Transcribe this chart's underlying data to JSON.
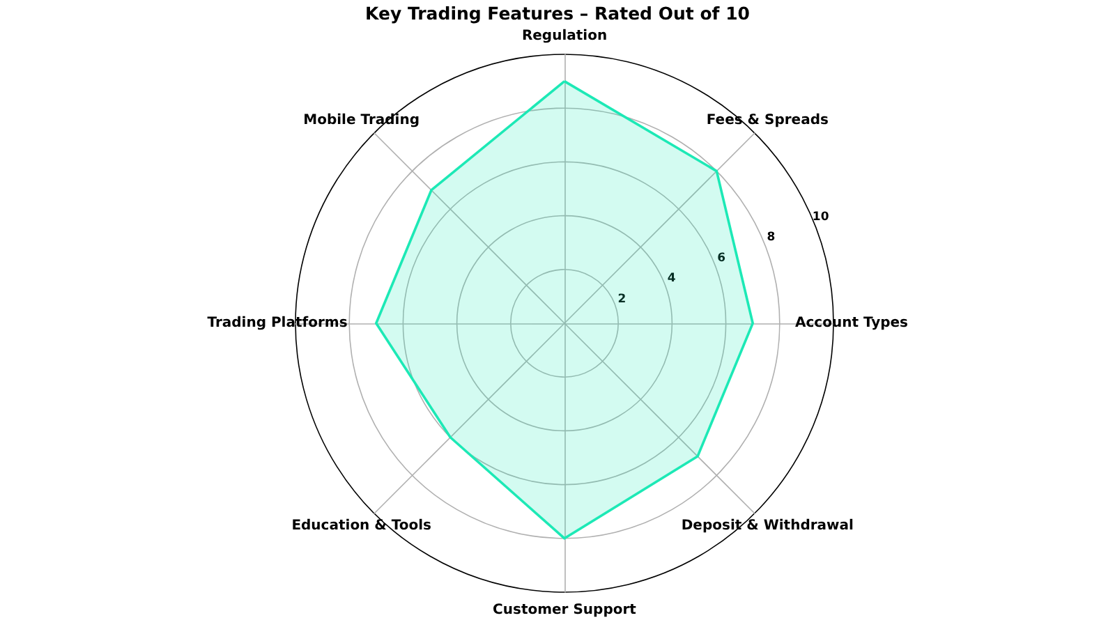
{
  "chart_data": {
    "type": "radar",
    "title": "Key Trading Features – Rated Out of 10",
    "categories": [
      "Regulation",
      "Fees & Spreads",
      "Account Types",
      "Deposit & Withdrawal",
      "Customer Support",
      "Education & Tools",
      "Trading Platforms",
      "Mobile Trading"
    ],
    "series": [
      {
        "color": "#1de9b6",
        "values": [
          9,
          8,
          7,
          7,
          8,
          6,
          7,
          7
        ]
      }
    ],
    "ylim": [
      0,
      10
    ],
    "yticks": [
      2,
      4,
      6,
      8,
      10
    ],
    "grid": true,
    "marker": "none"
  }
}
